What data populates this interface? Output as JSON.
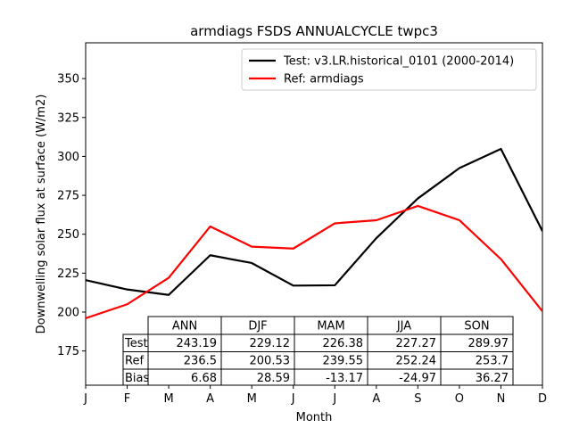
{
  "chart_data": {
    "type": "line",
    "title": "armdiags FSDS ANNUALCYCLE twpc3",
    "xlabel": "Month",
    "ylabel": "Downwelling solar flux at surface (W/m2)",
    "categories": [
      "J",
      "F",
      "M",
      "A",
      "M",
      "J",
      "J",
      "A",
      "S",
      "O",
      "N",
      "D"
    ],
    "ylim": [
      153,
      373
    ],
    "yticks": [
      175,
      200,
      225,
      250,
      275,
      300,
      325,
      350
    ],
    "grid": false,
    "legend_position": "top-right",
    "series": [
      {
        "name": "Test: v3.LR.historical_0101 (2000-2014)",
        "color": "#000000",
        "values": [
          220.5,
          214.5,
          211,
          236.5,
          231.5,
          217,
          217.2,
          247.5,
          273,
          292.5,
          304.8,
          252
        ]
      },
      {
        "name": "Ref: armdiags",
        "color": "#ff0000",
        "values": [
          196,
          205,
          222,
          255,
          242,
          240.8,
          257,
          259,
          268.2,
          259,
          234,
          200.5
        ]
      }
    ],
    "table": {
      "columns": [
        "ANN",
        "DJF",
        "MAM",
        "JJA",
        "SON"
      ],
      "rows": [
        {
          "label": "Test",
          "values": [
            "243.19",
            "229.12",
            "226.38",
            "227.27",
            "289.97"
          ]
        },
        {
          "label": "Ref",
          "values": [
            "236.5",
            "200.53",
            "239.55",
            "252.24",
            "253.7"
          ]
        },
        {
          "label": "Bias",
          "values": [
            "6.68",
            "28.59",
            "-13.17",
            "-24.97",
            "36.27"
          ]
        }
      ]
    }
  }
}
